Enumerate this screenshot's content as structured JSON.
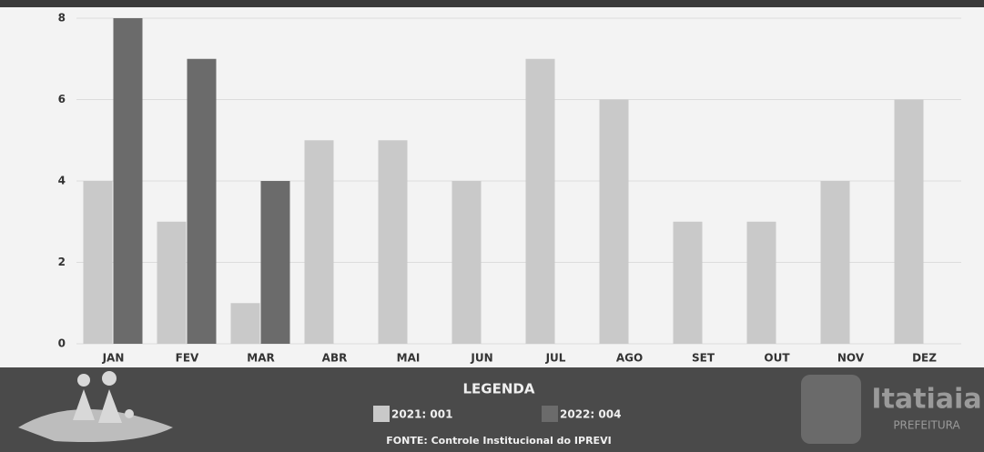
{
  "chart_data": {
    "type": "bar",
    "categories": [
      "JAN",
      "FEV",
      "MAR",
      "ABR",
      "MAI",
      "JUN",
      "JUL",
      "AGO",
      "SET",
      "OUT",
      "NOV",
      "DEZ"
    ],
    "series": [
      {
        "name": "2021: 001",
        "color": "#c9c9c9",
        "values": [
          4,
          3,
          1,
          5,
          5,
          4,
          7,
          6,
          3,
          3,
          4,
          6
        ]
      },
      {
        "name": "2022: 004",
        "color": "#6b6b6b",
        "values": [
          8,
          7,
          4,
          null,
          null,
          null,
          null,
          null,
          null,
          null,
          null,
          null
        ]
      }
    ],
    "ylim": [
      0,
      8
    ],
    "yticks": [
      0,
      2,
      4,
      6,
      8
    ],
    "grid": true,
    "legend_title": "LEGENDA",
    "source": "FONTE: Controle Institucional do IPREVI"
  },
  "logo": {
    "name": "Itatiaia",
    "subtitle": "PREFEITURA"
  }
}
